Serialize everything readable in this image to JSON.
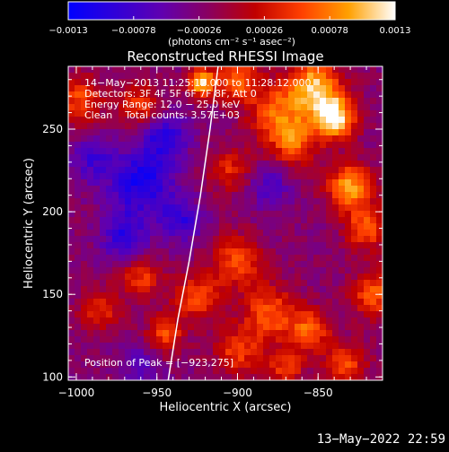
{
  "chart_data": {
    "type": "heatmap",
    "title": "Reconstructed RHESSI Image",
    "xlabel": "Heliocentric X (arcsec)",
    "ylabel": "Heliocentric Y (arcsec)",
    "xlim": [
      -1005,
      -810
    ],
    "ylim": [
      98,
      288
    ],
    "x_ticks": [
      {
        "value": -1000,
        "label": "−1000"
      },
      {
        "value": -950,
        "label": "−950"
      },
      {
        "value": -900,
        "label": "−900"
      },
      {
        "value": -850,
        "label": "−850"
      }
    ],
    "y_ticks": [
      {
        "value": 100,
        "label": "100"
      },
      {
        "value": 150,
        "label": "150"
      },
      {
        "value": 200,
        "label": "200"
      },
      {
        "value": 250,
        "label": "250"
      }
    ],
    "colorbar": {
      "min": -0.0013,
      "max": 0.0013,
      "unit_label": "(photons cm⁻² s⁻¹ asec⁻²)",
      "ticks": [
        {
          "value": -0.0013,
          "label": "−0.0013"
        },
        {
          "value": -0.00078,
          "label": "−0.00078"
        },
        {
          "value": -0.00026,
          "label": "−0.00026"
        },
        {
          "value": 0.00026,
          "label": "0.00026"
        },
        {
          "value": 0.00078,
          "label": "0.00078"
        },
        {
          "value": 0.0013,
          "label": "0.0013"
        }
      ],
      "colors": [
        "#0000ff",
        "#3000d8",
        "#6000b0",
        "#8a0060",
        "#c00000",
        "#ff4000",
        "#ffa000",
        "#ffffff"
      ]
    },
    "annotations": [
      "14−May−2013 11:25:12.000 to 11:28:12.000",
      "Detectors: 3F 4F 5F 6F 7F 8F, Att 0",
      "Energy Range: 12.0 − 25.0 keV",
      "Clean    Total counts: 3.57E+03"
    ],
    "peak_label": "Position of Peak = [−923,275]",
    "peak": {
      "x": -923,
      "y": 275
    },
    "limb_curve": [
      {
        "x": -943,
        "y": 98
      },
      {
        "x": -937,
        "y": 135
      },
      {
        "x": -930,
        "y": 170
      },
      {
        "x": -923,
        "y": 210
      },
      {
        "x": -917,
        "y": 250
      },
      {
        "x": -912,
        "y": 288
      }
    ],
    "hot_spots": [
      {
        "x": -840,
        "y": 257,
        "s": 9,
        "a": 1.0
      },
      {
        "x": -852,
        "y": 276,
        "s": 11,
        "a": 0.8
      },
      {
        "x": -875,
        "y": 260,
        "s": 13,
        "a": 0.55
      },
      {
        "x": -865,
        "y": 242,
        "s": 10,
        "a": 0.5
      },
      {
        "x": -900,
        "y": 280,
        "s": 9,
        "a": 0.55
      },
      {
        "x": -922,
        "y": 278,
        "s": 6,
        "a": 0.85
      },
      {
        "x": -830,
        "y": 215,
        "s": 10,
        "a": 0.75
      },
      {
        "x": -820,
        "y": 190,
        "s": 9,
        "a": 0.55
      },
      {
        "x": -815,
        "y": 150,
        "s": 10,
        "a": 0.55
      },
      {
        "x": -833,
        "y": 108,
        "s": 9,
        "a": 0.5
      },
      {
        "x": -855,
        "y": 128,
        "s": 9,
        "a": 0.55
      },
      {
        "x": -880,
        "y": 138,
        "s": 12,
        "a": 0.55
      },
      {
        "x": -900,
        "y": 170,
        "s": 11,
        "a": 0.5
      },
      {
        "x": -925,
        "y": 148,
        "s": 10,
        "a": 0.5
      },
      {
        "x": -945,
        "y": 125,
        "s": 8,
        "a": 0.5
      },
      {
        "x": -960,
        "y": 160,
        "s": 9,
        "a": 0.45
      },
      {
        "x": -985,
        "y": 140,
        "s": 9,
        "a": 0.4
      },
      {
        "x": -998,
        "y": 268,
        "s": 10,
        "a": 0.5
      },
      {
        "x": -960,
        "y": 265,
        "s": 9,
        "a": 0.45
      },
      {
        "x": -900,
        "y": 115,
        "s": 10,
        "a": 0.45
      },
      {
        "x": -870,
        "y": 105,
        "s": 8,
        "a": 0.45
      },
      {
        "x": -905,
        "y": 225,
        "s": 9,
        "a": 0.4
      }
    ],
    "cold_spots": [
      {
        "x": -960,
        "y": 218,
        "s": 14,
        "a": 0.75
      },
      {
        "x": -945,
        "y": 245,
        "s": 10,
        "a": 0.6
      },
      {
        "x": -970,
        "y": 185,
        "s": 10,
        "a": 0.6
      },
      {
        "x": -935,
        "y": 195,
        "s": 9,
        "a": 0.55
      },
      {
        "x": -990,
        "y": 232,
        "s": 9,
        "a": 0.45
      },
      {
        "x": -880,
        "y": 215,
        "s": 9,
        "a": 0.4
      },
      {
        "x": -960,
        "y": 108,
        "s": 9,
        "a": 0.4
      }
    ]
  },
  "footer": {
    "date": "13−May−2022 22:59"
  }
}
